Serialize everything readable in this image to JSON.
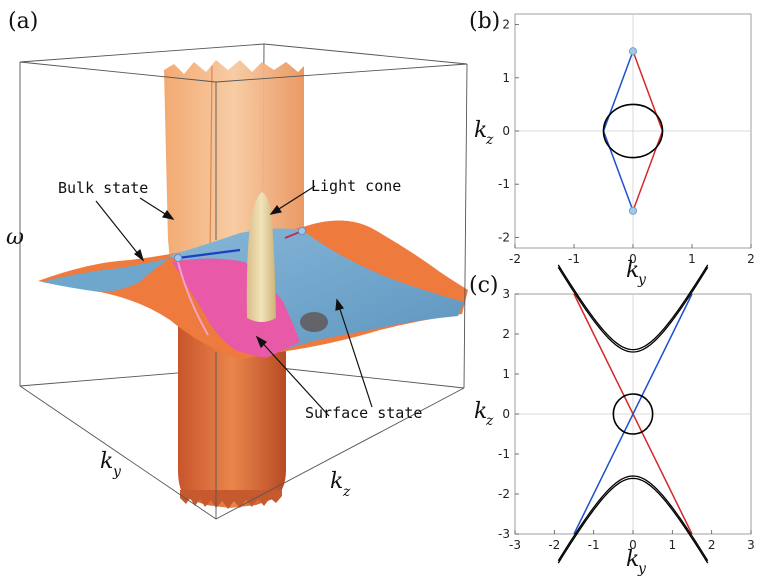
{
  "figure": {
    "panel_a": {
      "label": "(a)",
      "annotations": {
        "bulk_state": "Bulk state",
        "light_cone": "Light cone",
        "surface_state": "Surface state"
      },
      "axes": {
        "omega": "ω",
        "ky_main": "k",
        "ky_sub": "y",
        "kz_main": "k",
        "kz_sub": "z"
      },
      "colors": {
        "bulk_orange": "#f07a3c",
        "bulk_peach": "#f4b183",
        "light_cone": "#e9d7a6",
        "surface_blue": "#6ea6cc",
        "surface_pink": "#e85aa8"
      }
    },
    "panel_b": {
      "label": "(b)",
      "xlabel_main": "k",
      "xlabel_sub": "y",
      "ylabel_main": "k",
      "ylabel_sub": "z",
      "xticks": [
        "-2",
        "-1",
        "0",
        "1",
        "2"
      ],
      "yticks": [
        "2",
        "1",
        "0",
        "-1",
        "-2"
      ]
    },
    "panel_c": {
      "label": "(c)",
      "xlabel_main": "k",
      "xlabel_sub": "y",
      "ylabel_main": "k",
      "ylabel_sub": "z",
      "xticks": [
        "-3",
        "-2",
        "-1",
        "0",
        "1",
        "2",
        "3"
      ],
      "yticks": [
        "3",
        "2",
        "1",
        "0",
        "-1",
        "-2",
        "-3"
      ]
    }
  },
  "chart_data": [
    {
      "type": "line",
      "panel": "b",
      "xlim": [
        -2,
        2
      ],
      "ylim": [
        -2.2,
        2.2
      ],
      "grid": false,
      "series": [
        {
          "color": "#d62728",
          "x": [
            0,
            0.5,
            0
          ],
          "y": [
            1.5,
            0,
            -1.5
          ]
        },
        {
          "color": "#1f4fcf",
          "x": [
            0,
            -0.5,
            0
          ],
          "y": [
            1.5,
            0,
            -1.5
          ]
        },
        {
          "color": "#000000",
          "shape": "circle",
          "center": [
            0,
            0
          ],
          "radius": [
            0.5,
            0.5
          ]
        }
      ],
      "points": [
        {
          "x": 0,
          "y": 1.5
        },
        {
          "x": 0,
          "y": -1.5
        }
      ]
    },
    {
      "type": "line",
      "panel": "c",
      "xlim": [
        -3,
        3
      ],
      "ylim": [
        -3,
        3
      ],
      "grid": false,
      "series": [
        {
          "color": "#d62728",
          "x": [
            -1.5,
            1.5
          ],
          "y": [
            3,
            -3
          ]
        },
        {
          "color": "#1f4fcf",
          "x": [
            -1.5,
            1.5
          ],
          "y": [
            -3,
            3
          ]
        },
        {
          "color": "#000000",
          "shape": "circle",
          "center": [
            0,
            0
          ],
          "radius": [
            0.5,
            0.5
          ]
        },
        {
          "color": "#000000",
          "shape": "hyperbola",
          "vertex": 1.55
        }
      ]
    }
  ]
}
